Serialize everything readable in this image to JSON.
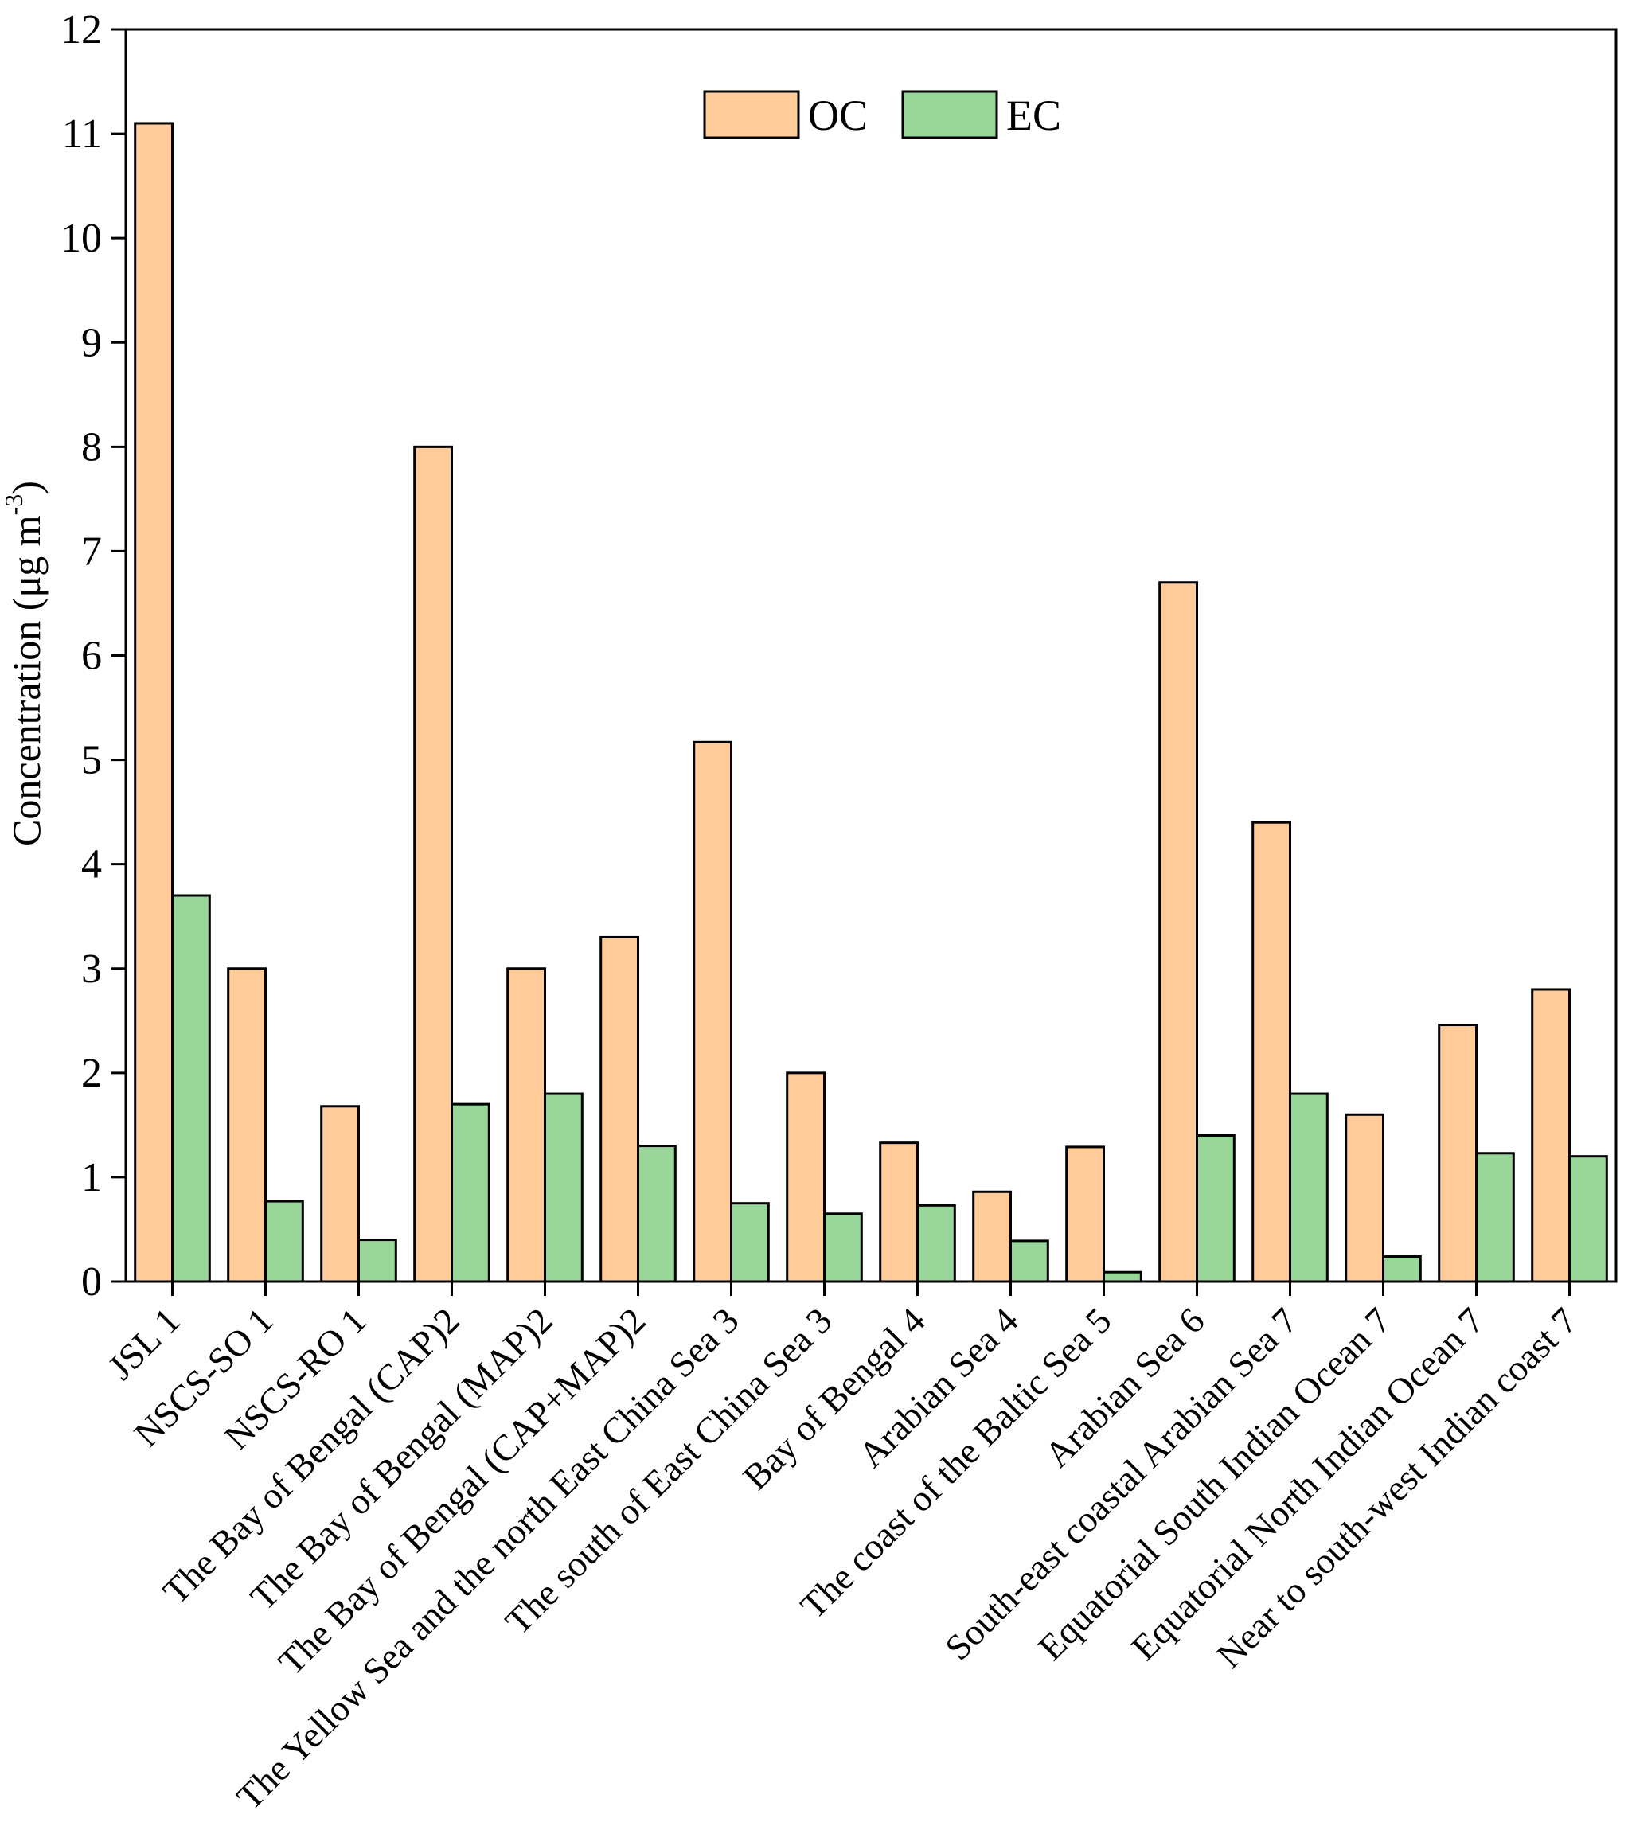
{
  "chart_data": {
    "type": "bar",
    "title": "",
    "xlabel": "",
    "ylabel_main": "Concentration (μg m",
    "ylabel_sup": "-3",
    "ylabel_close": ")",
    "ylim": [
      0,
      12
    ],
    "yticks": [
      "0",
      "1",
      "2",
      "3",
      "4",
      "5",
      "6",
      "7",
      "8",
      "9",
      "10",
      "11",
      "12"
    ],
    "legend_position": "top-center",
    "categories": [
      "JSL 1",
      "NSCS-SO 1",
      "NSCS-RO 1",
      "The Bay of Bengal (CAP)2",
      "The Bay of Bengal (MAP)2",
      "The Bay of Bengal (CAP+MAP)2",
      "The Yellow Sea and the north East China Sea 3",
      "The south of East China Sea 3",
      "Bay of Bengal 4",
      "Arabian Sea 4",
      "The coast of the Baltic Sea 5",
      "Arabian Sea 6",
      "South-east coastal Arabian Sea 7",
      "Equatorial South Indian Ocean 7",
      "Equatorial North Indian Ocean 7",
      "Near to south-west Indian coast 7"
    ],
    "series": [
      {
        "name": "OC",
        "color": "#FFCC99",
        "values": [
          11.1,
          3.0,
          1.68,
          8.0,
          3.0,
          3.3,
          5.17,
          2.0,
          1.33,
          0.86,
          1.29,
          6.7,
          4.4,
          1.6,
          2.46,
          2.8
        ]
      },
      {
        "name": "EC",
        "color": "#99D699",
        "values": [
          3.7,
          0.77,
          0.4,
          1.7,
          1.8,
          1.3,
          0.75,
          0.65,
          0.73,
          0.39,
          0.09,
          1.4,
          1.8,
          0.24,
          1.23,
          1.2
        ]
      }
    ]
  }
}
